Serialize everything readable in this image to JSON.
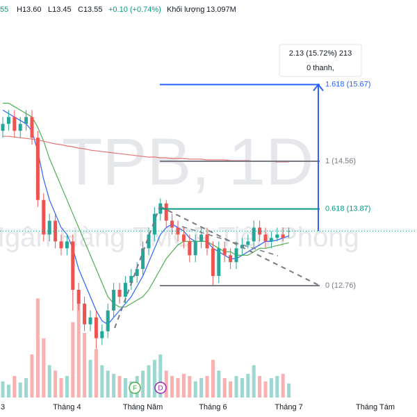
{
  "chart_data": {
    "type": "candlestick",
    "header": [
      "55",
      "H13.60",
      "L13.45",
      "C13.55",
      "+0.10 (+0.74%)",
      "Khối lượng",
      "13.097M"
    ],
    "watermark_symbol": "TPB, 1D",
    "watermark_name": "Ngân Hàng TMCP Tiên Phong",
    "categories": [
      "3",
      null,
      null,
      null,
      null,
      null,
      null,
      null,
      null,
      null,
      null,
      "Tháng 4",
      null,
      null,
      null,
      null,
      null,
      null,
      null,
      null,
      null,
      null,
      null,
      null,
      "Tháng Năm",
      null,
      null,
      null,
      null,
      null,
      null,
      null,
      null,
      null,
      null,
      null,
      "Tháng 6",
      null,
      null,
      null,
      null,
      null,
      null,
      null,
      null,
      null,
      null,
      null,
      null,
      "Tháng 7"
    ],
    "x_extra_labels": [
      "Tháng Tám"
    ],
    "open": [
      15.0,
      15.1,
      15.2,
      15.0,
      15.1,
      15.2,
      14.9,
      14.0,
      13.5,
      13.7,
      13.4,
      13.3,
      13.4,
      12.7,
      12.5,
      12.2,
      12.3,
      12.0,
      12.1,
      12.4,
      12.7,
      12.6,
      12.8,
      12.9,
      13.0,
      13.3,
      13.5,
      13.8,
      13.95,
      13.7,
      13.6,
      13.5,
      13.4,
      13.2,
      13.4,
      13.5,
      13.3,
      12.9,
      13.3,
      13.2,
      13.1,
      13.3,
      13.35,
      13.4,
      13.6,
      13.5,
      13.4,
      13.45,
      13.5,
      13.55
    ],
    "high": [
      15.2,
      15.3,
      15.3,
      15.2,
      15.3,
      15.3,
      15.0,
      14.1,
      13.8,
      13.8,
      13.5,
      13.5,
      13.5,
      12.8,
      12.6,
      12.4,
      12.4,
      12.2,
      12.5,
      12.8,
      12.8,
      12.9,
      13.0,
      13.1,
      13.4,
      13.6,
      13.9,
      14.02,
      14.0,
      13.8,
      13.7,
      13.6,
      13.5,
      13.5,
      13.6,
      13.6,
      13.4,
      13.4,
      13.4,
      13.3,
      13.4,
      13.45,
      13.5,
      13.7,
      13.7,
      13.6,
      13.55,
      13.6,
      13.6,
      13.6
    ],
    "low": [
      14.9,
      15.0,
      14.9,
      14.9,
      15.0,
      14.8,
      13.9,
      13.4,
      13.4,
      13.3,
      13.2,
      13.2,
      12.4,
      12.4,
      12.1,
      12.1,
      11.85,
      11.9,
      12.0,
      12.3,
      12.5,
      12.5,
      12.7,
      12.8,
      12.9,
      13.2,
      13.4,
      13.7,
      13.6,
      13.5,
      13.4,
      13.3,
      13.1,
      13.1,
      13.3,
      13.2,
      12.75,
      12.8,
      13.1,
      13.0,
      13.0,
      13.2,
      13.3,
      13.3,
      13.4,
      13.3,
      13.3,
      13.4,
      13.4,
      13.45
    ],
    "close": [
      15.1,
      15.2,
      15.0,
      15.1,
      15.2,
      14.9,
      14.0,
      13.5,
      13.7,
      13.4,
      13.3,
      13.4,
      12.7,
      12.5,
      12.2,
      12.3,
      12.0,
      12.1,
      12.4,
      12.7,
      12.6,
      12.8,
      12.9,
      13.0,
      13.3,
      13.5,
      13.8,
      13.95,
      13.7,
      13.6,
      13.5,
      13.4,
      13.2,
      13.4,
      13.5,
      13.3,
      12.9,
      13.3,
      13.2,
      13.1,
      13.3,
      13.35,
      13.4,
      13.6,
      13.5,
      13.4,
      13.45,
      13.5,
      13.45,
      13.55
    ],
    "volume": [
      15,
      12,
      20,
      14,
      18,
      40,
      92,
      55,
      30,
      25,
      18,
      20,
      70,
      88,
      60,
      35,
      45,
      30,
      25,
      22,
      20,
      18,
      15,
      20,
      25,
      30,
      35,
      40,
      25,
      20,
      18,
      22,
      20,
      15,
      18,
      20,
      35,
      25,
      18,
      15,
      20,
      18,
      22,
      30,
      20,
      15,
      18,
      20,
      22,
      13.097
    ],
    "up_color": "#26a69a",
    "down_color": "#ef5350",
    "series": [
      {
        "color": "#2962ff",
        "values": [
          15.3,
          15.25,
          15.2,
          15.15,
          15.1,
          15.0,
          14.7,
          14.3,
          14.0,
          13.8,
          13.6,
          13.5,
          13.3,
          13.0,
          12.8,
          12.6,
          12.4,
          12.25,
          12.2,
          12.3,
          12.4,
          12.5,
          12.6,
          12.75,
          12.9,
          13.1,
          13.3,
          13.5,
          13.6,
          13.65,
          13.6,
          13.55,
          13.45,
          13.4,
          13.4,
          13.4,
          13.3,
          13.25,
          13.2,
          13.15,
          13.15,
          13.2,
          13.25,
          13.3,
          13.35,
          13.4,
          13.4,
          13.42,
          13.45,
          13.48
        ]
      },
      {
        "color": "#4caf50",
        "values": [
          15.4,
          15.4,
          15.35,
          15.3,
          15.25,
          15.2,
          15.05,
          14.85,
          14.6,
          14.4,
          14.2,
          14.0,
          13.8,
          13.6,
          13.4,
          13.2,
          13.0,
          12.8,
          12.6,
          12.5,
          12.45,
          12.45,
          12.5,
          12.55,
          12.6,
          12.7,
          12.85,
          13.0,
          13.15,
          13.25,
          13.35,
          13.4,
          13.4,
          13.4,
          13.4,
          13.4,
          13.35,
          13.3,
          13.25,
          13.25,
          13.2,
          13.2,
          13.2,
          13.25,
          13.3,
          13.3,
          13.32,
          13.34,
          13.36,
          13.38
        ]
      },
      {
        "color": "#e57373",
        "values": [
          14.92,
          14.92,
          14.91,
          14.9,
          14.89,
          14.88,
          14.87,
          14.85,
          14.83,
          14.81,
          14.8,
          14.78,
          14.77,
          14.75,
          14.74,
          14.72,
          14.71,
          14.7,
          14.69,
          14.68,
          14.67,
          14.66,
          14.65,
          14.64,
          14.63,
          14.62,
          14.62,
          14.61,
          14.61,
          14.6,
          14.6,
          14.6,
          14.59,
          14.59,
          14.59,
          14.58,
          14.58,
          14.58,
          14.58,
          14.57,
          14.57,
          14.57,
          14.57,
          14.56,
          14.56,
          14.56,
          14.56,
          14.55,
          14.55,
          14.55
        ]
      }
    ],
    "fib_levels": [
      {
        "value": 15.67,
        "label": "1.618 (15.67)",
        "color": "#2962ff"
      },
      {
        "value": 14.56,
        "label": "1 (14.56)",
        "color": "#787b86"
      },
      {
        "value": 13.87,
        "label": "0.618 (13.87)",
        "color": "#089981"
      },
      {
        "value": 12.76,
        "label": "0 (12.76)",
        "color": "#787b86"
      }
    ],
    "measure": [
      "2.13 (15.72%) 213",
      "0 thanh,"
    ],
    "markers": [
      "F",
      "D"
    ]
  }
}
